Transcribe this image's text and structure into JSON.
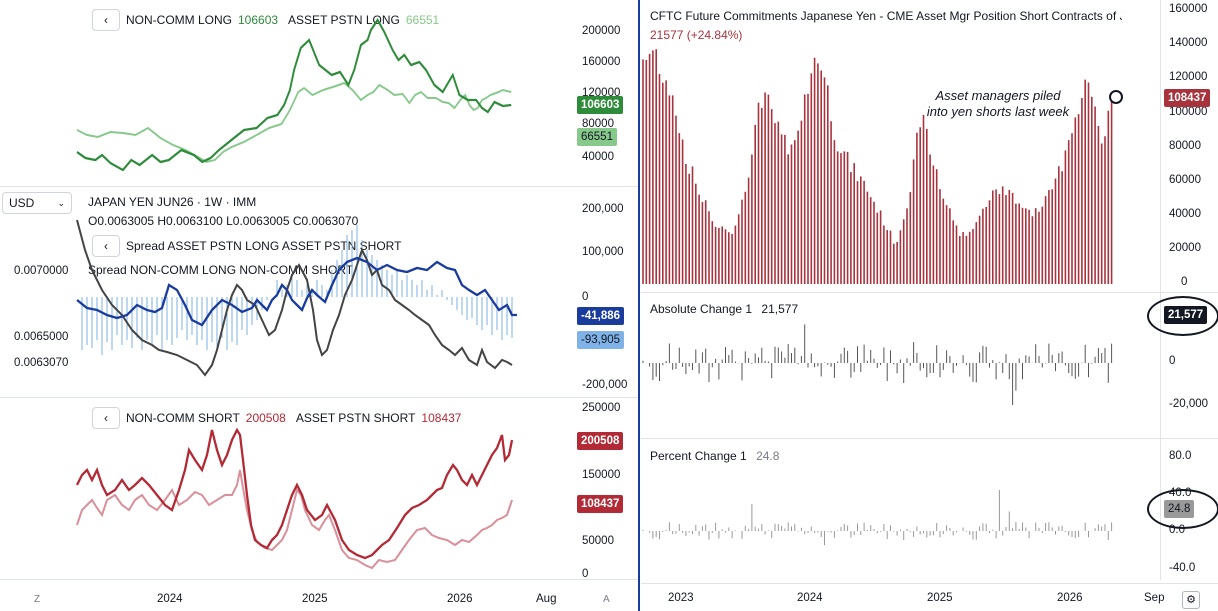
{
  "left": {
    "panel1": {
      "back": "‹",
      "s1_name": "NON-COMM LONG",
      "s1_value": "106603",
      "s2_name": "ASSET PSTN LONG",
      "s2_value": "66551",
      "ticks": [
        "200000",
        "160000",
        "120000",
        "80000",
        "40000"
      ],
      "tag1": "106603",
      "tag2": "66551"
    },
    "panel2": {
      "currency": "USD",
      "symbol": "JAPAN YEN JUN26 · 1W · IMM",
      "ohlc": "O0.0063005  H0.0063100  L0.0063005  C0.0063070",
      "spread1": "Spread ASSET PSTN LONG ASSET PSTN SHORT",
      "spread2": "Spread NON-COMM LONG NON-COMM SHORT",
      "left_ticks": [
        "0.0070000",
        "0.0065000",
        "0.0063070"
      ],
      "right_ticks": [
        "200,000",
        "100,000",
        "0",
        "-200,000"
      ],
      "tag1": "-41,886",
      "tag2": "-93,905"
    },
    "panel3": {
      "s1_name": "NON-COMM SHORT",
      "s1_value": "200508",
      "s2_name": "ASSET PSTN SHORT",
      "s2_value": "108437",
      "ticks": [
        "250000",
        "150000",
        "100000",
        "50000",
        "0"
      ],
      "tag1": "200508",
      "tag2": "108437"
    },
    "time_axis": [
      "2024",
      "2025",
      "2026",
      "Aug"
    ],
    "corner_left": "Z",
    "corner_right": "A"
  },
  "right": {
    "title": "CFTC Future Commitments Japanese Yen - CME Asset Mgr Position Short Contracts of J",
    "subtitle": "21577 (+24.84%)",
    "annotation_line1": "Asset managers piled",
    "annotation_line2": "into yen shorts last week",
    "ticks_main": [
      "160000",
      "140000",
      "120000",
      "100000",
      "80000",
      "60000",
      "40000",
      "20000",
      "0"
    ],
    "tag_main": "108437",
    "abs_label": "Absolute Change 1",
    "abs_value": "21,577",
    "abs_ticks": [
      "0",
      "-20,000"
    ],
    "abs_tag": "21,577",
    "pct_label": "Percent Change 1",
    "pct_value": "24.8",
    "pct_ticks": [
      "80.0",
      "40.0",
      "0.0",
      "-40.0"
    ],
    "pct_tag": "24.8",
    "time_axis": [
      "2023",
      "2024",
      "2025",
      "2026",
      "Sep"
    ]
  },
  "colors": {
    "green_dark": "#2e8b3a",
    "green_light": "#86c98a",
    "red_dark": "#b22a35",
    "red_light": "#d9909a",
    "blue_dark": "#1a3c9c",
    "blue_light": "#7fb2e6",
    "accent_main": "#a8333d"
  }
}
